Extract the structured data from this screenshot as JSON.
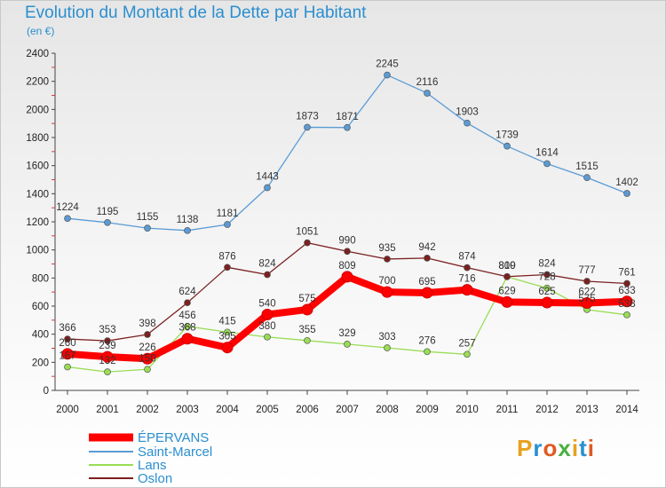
{
  "title": "Evolution du Montant de la Dette par Habitant",
  "subtitle": "(en €)",
  "logo": "Proxiti",
  "chart_data": {
    "type": "line",
    "x": [
      "2000",
      "2001",
      "2002",
      "2003",
      "2004",
      "2005",
      "2006",
      "2007",
      "2008",
      "2009",
      "2010",
      "2011",
      "2012",
      "2013",
      "2014"
    ],
    "ylim": [
      0,
      2400
    ],
    "yticks": [
      0,
      200,
      400,
      600,
      800,
      1000,
      1200,
      1400,
      1600,
      1800,
      2000,
      2200,
      2400
    ],
    "grid": false,
    "legend_position": "bottom-left",
    "series": [
      {
        "name": "ÉPERVANS",
        "color": "#ff0000",
        "values": [
          260,
          239,
          226,
          368,
          305,
          540,
          575,
          809,
          700,
          695,
          716,
          629,
          625,
          622,
          633
        ]
      },
      {
        "name": "Saint-Marcel",
        "color": "#5b9bd5",
        "values": [
          1224,
          1195,
          1155,
          1138,
          1181,
          1443,
          1873,
          1871,
          2245,
          2116,
          1903,
          1739,
          1614,
          1515,
          1402
        ]
      },
      {
        "name": "Lans",
        "color": "#99dd55",
        "values": [
          167,
          132,
          150,
          456,
          415,
          380,
          355,
          329,
          303,
          276,
          257,
          809,
          728,
          575,
          538
        ]
      },
      {
        "name": "Oslon",
        "color": "#7b2020",
        "values": [
          366,
          353,
          398,
          624,
          876,
          824,
          1051,
          990,
          935,
          942,
          874,
          810,
          824,
          777,
          761
        ]
      }
    ]
  }
}
